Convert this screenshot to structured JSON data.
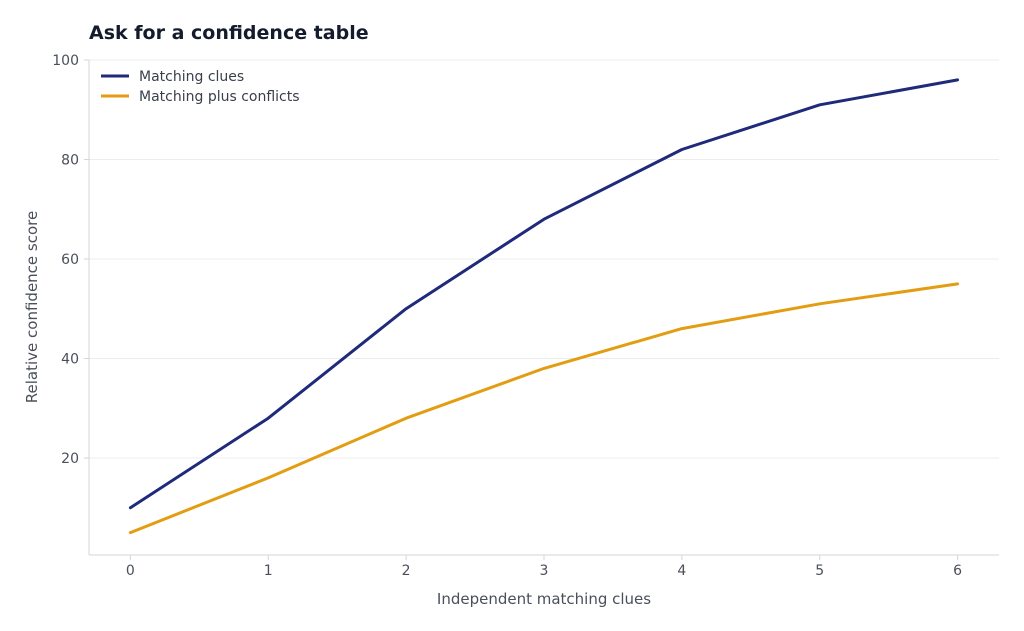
{
  "chart_data": {
    "type": "line",
    "title": "Ask for a confidence table",
    "xlabel": "Independent matching clues",
    "ylabel": "Relative confidence score",
    "x": [
      0,
      1,
      2,
      3,
      4,
      5,
      6
    ],
    "x_ticks": [
      "0",
      "1",
      "2",
      "3",
      "4",
      "5",
      "6"
    ],
    "y_ticks": [
      "20",
      "40",
      "60",
      "80",
      "100"
    ],
    "xlim": [
      -0.3,
      6.3
    ],
    "ylim": [
      0.5,
      100
    ],
    "grid": "horizontal",
    "legend_position": "top-left",
    "series": [
      {
        "name": "Matching clues",
        "color": "#1f2a7a",
        "values": [
          10,
          28,
          50,
          68,
          82,
          91,
          96
        ]
      },
      {
        "name": "Matching plus conflicts",
        "color": "#e39d12",
        "values": [
          5,
          16,
          28,
          38,
          46,
          51,
          55
        ]
      }
    ]
  }
}
